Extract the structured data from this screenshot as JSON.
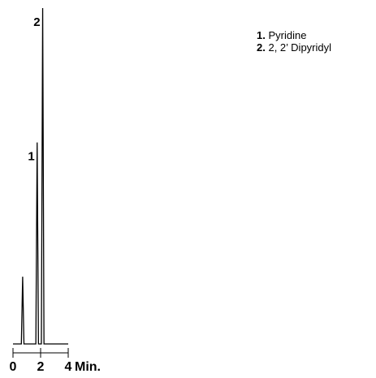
{
  "chart_data": {
    "type": "line",
    "title": "",
    "xlabel": "",
    "ylabel": "",
    "x_unit": "Min.",
    "xlim": [
      0,
      4
    ],
    "x_ticks": [
      0,
      2,
      4
    ],
    "x_tick_labels": [
      "0",
      "2",
      "4",
      "Min."
    ],
    "peaks": [
      {
        "label": "",
        "time": 0.7,
        "height": 0.2
      },
      {
        "label": "1",
        "time": 1.75,
        "height": 0.6
      },
      {
        "label": "2",
        "time": 2.15,
        "height": 1.0
      }
    ],
    "legend": [
      {
        "number": "1.",
        "name": "Pyridine"
      },
      {
        "number": "2.",
        "name": "2, 2’ Dipyridyl"
      }
    ],
    "color": "#000000"
  }
}
